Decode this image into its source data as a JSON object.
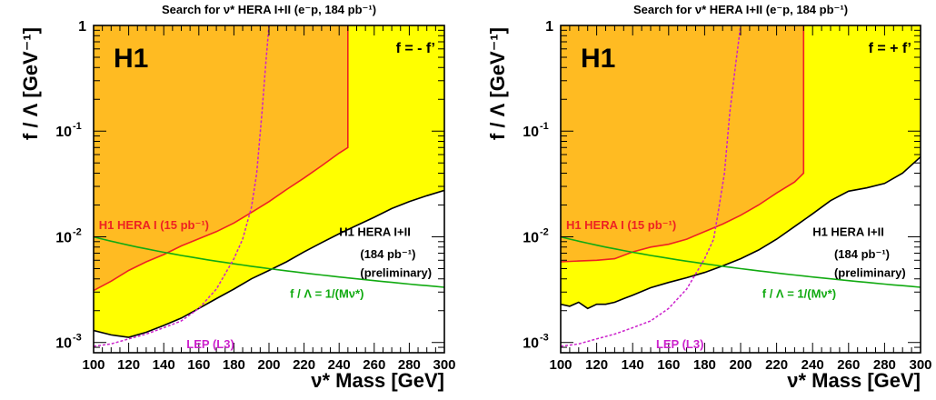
{
  "colors": {
    "hera2_fill": "#ffff00",
    "hera1_fill": "#ffbb22",
    "hera1_line": "#ee2222",
    "lep_line": "#cc22cc",
    "theory_line": "#11aa11",
    "frame": "#000000"
  },
  "chart_data": [
    {
      "type": "line",
      "title": "Search for ν* HERA I+II (e⁻p, 184 pb⁻¹)",
      "experiment_label": "H1",
      "coupling_label": "f = - f’",
      "xlabel": "ν* Mass [GeV]",
      "ylabel": "f / Λ [GeV⁻¹]",
      "xlim": [
        100,
        300
      ],
      "ylim": [
        0.0008,
        1
      ],
      "yscale": "log",
      "x_ticks": [
        100,
        120,
        140,
        160,
        180,
        200,
        220,
        240,
        260,
        280,
        300
      ],
      "y_ticks": [
        {
          "value": 1,
          "base": "1",
          "exp": ""
        },
        {
          "value": 0.1,
          "base": "10",
          "exp": "-1"
        },
        {
          "value": 0.01,
          "base": "10",
          "exp": "-2"
        },
        {
          "value": 0.001,
          "base": "10",
          "exp": "-3"
        }
      ],
      "series": [
        {
          "name": "H1 HERA I+II",
          "role": "hera2",
          "x": [
            100,
            110,
            120,
            130,
            140,
            150,
            160,
            170,
            180,
            190,
            200,
            210,
            220,
            230,
            240,
            250,
            260,
            270,
            280,
            290,
            300
          ],
          "y": [
            0.0013,
            0.00118,
            0.00112,
            0.00125,
            0.00145,
            0.0017,
            0.0021,
            0.0026,
            0.0032,
            0.004,
            0.0048,
            0.0058,
            0.0072,
            0.0088,
            0.0107,
            0.0128,
            0.0153,
            0.0185,
            0.0215,
            0.0245,
            0.0275
          ]
        },
        {
          "name": "H1 HERA I (15 pb⁻¹)",
          "role": "hera1",
          "x": [
            100,
            110,
            120,
            130,
            140,
            150,
            160,
            170,
            180,
            190,
            200,
            210,
            220,
            230,
            240,
            245,
            245
          ],
          "y": [
            0.0031,
            0.0038,
            0.0048,
            0.0058,
            0.0068,
            0.0082,
            0.0096,
            0.0112,
            0.0135,
            0.017,
            0.0215,
            0.028,
            0.036,
            0.047,
            0.062,
            0.07,
            1
          ]
        },
        {
          "name": "LEP (L3)",
          "role": "lep",
          "x": [
            100,
            110,
            120,
            130,
            140,
            150,
            160,
            170,
            180,
            185,
            190,
            193,
            196,
            198,
            200
          ],
          "y": [
            0.00092,
            0.00097,
            0.00108,
            0.0012,
            0.00138,
            0.0016,
            0.0021,
            0.0032,
            0.0062,
            0.0095,
            0.019,
            0.04,
            0.15,
            0.4,
            1
          ]
        },
        {
          "name": "f / Λ  = 1/(Mν*)",
          "role": "theory",
          "x": [
            100,
            300
          ],
          "y": [
            0.01,
            0.00333
          ]
        }
      ],
      "annotations": [
        {
          "text": "H1 HERA I (15 pb⁻¹)",
          "x": 103,
          "y": 0.0118,
          "color": "#ee2222"
        },
        {
          "text": "H1 HERA I+II",
          "x": 240,
          "y": 0.0102,
          "color": "#000000"
        },
        {
          "text": "(184 pb⁻¹)",
          "x": 252,
          "y": 0.0063,
          "color": "#000000"
        },
        {
          "text": "(preliminary)",
          "x": 252,
          "y": 0.0042,
          "color": "#000000"
        },
        {
          "text": "f / Λ  = 1/(Mν*)",
          "x": 212,
          "y": 0.00265,
          "color": "#11aa11"
        },
        {
          "text": "LEP (L3)",
          "x": 153,
          "y": 0.00088,
          "color": "#cc22cc"
        }
      ]
    },
    {
      "type": "line",
      "title": "Search for ν* HERA I+II (e⁻p, 184 pb⁻¹)",
      "experiment_label": "H1",
      "coupling_label": "f = + f’",
      "xlabel": "ν* Mass [GeV]",
      "ylabel": "f / Λ [GeV⁻¹]",
      "xlim": [
        100,
        300
      ],
      "ylim": [
        0.0008,
        1
      ],
      "yscale": "log",
      "x_ticks": [
        100,
        120,
        140,
        160,
        180,
        200,
        220,
        240,
        260,
        280,
        300
      ],
      "y_ticks": [
        {
          "value": 1,
          "base": "1",
          "exp": ""
        },
        {
          "value": 0.1,
          "base": "10",
          "exp": "-1"
        },
        {
          "value": 0.01,
          "base": "10",
          "exp": "-2"
        },
        {
          "value": 0.001,
          "base": "10",
          "exp": "-3"
        }
      ],
      "series": [
        {
          "name": "H1 HERA I+II",
          "role": "hera2",
          "x": [
            100,
            105,
            110,
            115,
            120,
            125,
            130,
            135,
            140,
            150,
            160,
            170,
            180,
            190,
            200,
            210,
            220,
            230,
            240,
            250,
            260,
            270,
            280,
            290,
            300
          ],
          "y": [
            0.0023,
            0.0022,
            0.0024,
            0.0021,
            0.0023,
            0.0023,
            0.0024,
            0.0026,
            0.0028,
            0.0033,
            0.0037,
            0.0041,
            0.0046,
            0.0053,
            0.0062,
            0.0075,
            0.0095,
            0.0125,
            0.0165,
            0.022,
            0.027,
            0.029,
            0.032,
            0.04,
            0.057
          ]
        },
        {
          "name": "H1 HERA I (15 pb⁻¹)",
          "role": "hera1",
          "x": [
            100,
            110,
            120,
            130,
            140,
            150,
            160,
            170,
            180,
            190,
            200,
            210,
            220,
            230,
            235,
            235
          ],
          "y": [
            0.0058,
            0.0059,
            0.006,
            0.0062,
            0.0072,
            0.008,
            0.0085,
            0.0095,
            0.0112,
            0.0132,
            0.016,
            0.02,
            0.026,
            0.033,
            0.04,
            1
          ]
        },
        {
          "name": "LEP (L3)",
          "role": "lep",
          "x": [
            100,
            110,
            120,
            130,
            140,
            150,
            160,
            170,
            180,
            185,
            188,
            191,
            194,
            197,
            200
          ],
          "y": [
            0.00092,
            0.00097,
            0.00108,
            0.0012,
            0.00138,
            0.0016,
            0.0021,
            0.0032,
            0.0062,
            0.0095,
            0.019,
            0.04,
            0.15,
            0.4,
            1
          ]
        },
        {
          "name": "f / Λ  = 1/(Mν*)",
          "role": "theory",
          "x": [
            100,
            300
          ],
          "y": [
            0.01,
            0.00333
          ]
        }
      ],
      "annotations": [
        {
          "text": "H1 HERA I (15 pb⁻¹)",
          "x": 103,
          "y": 0.0118,
          "color": "#ee2222"
        },
        {
          "text": "H1 HERA I+II",
          "x": 240,
          "y": 0.0102,
          "color": "#000000"
        },
        {
          "text": "(184 pb⁻¹)",
          "x": 252,
          "y": 0.0063,
          "color": "#000000"
        },
        {
          "text": "(preliminary)",
          "x": 252,
          "y": 0.0042,
          "color": "#000000"
        },
        {
          "text": "f / Λ  = 1/(Mν*)",
          "x": 212,
          "y": 0.00265,
          "color": "#11aa11"
        },
        {
          "text": "LEP (L3)",
          "x": 153,
          "y": 0.00088,
          "color": "#cc22cc"
        }
      ]
    }
  ]
}
